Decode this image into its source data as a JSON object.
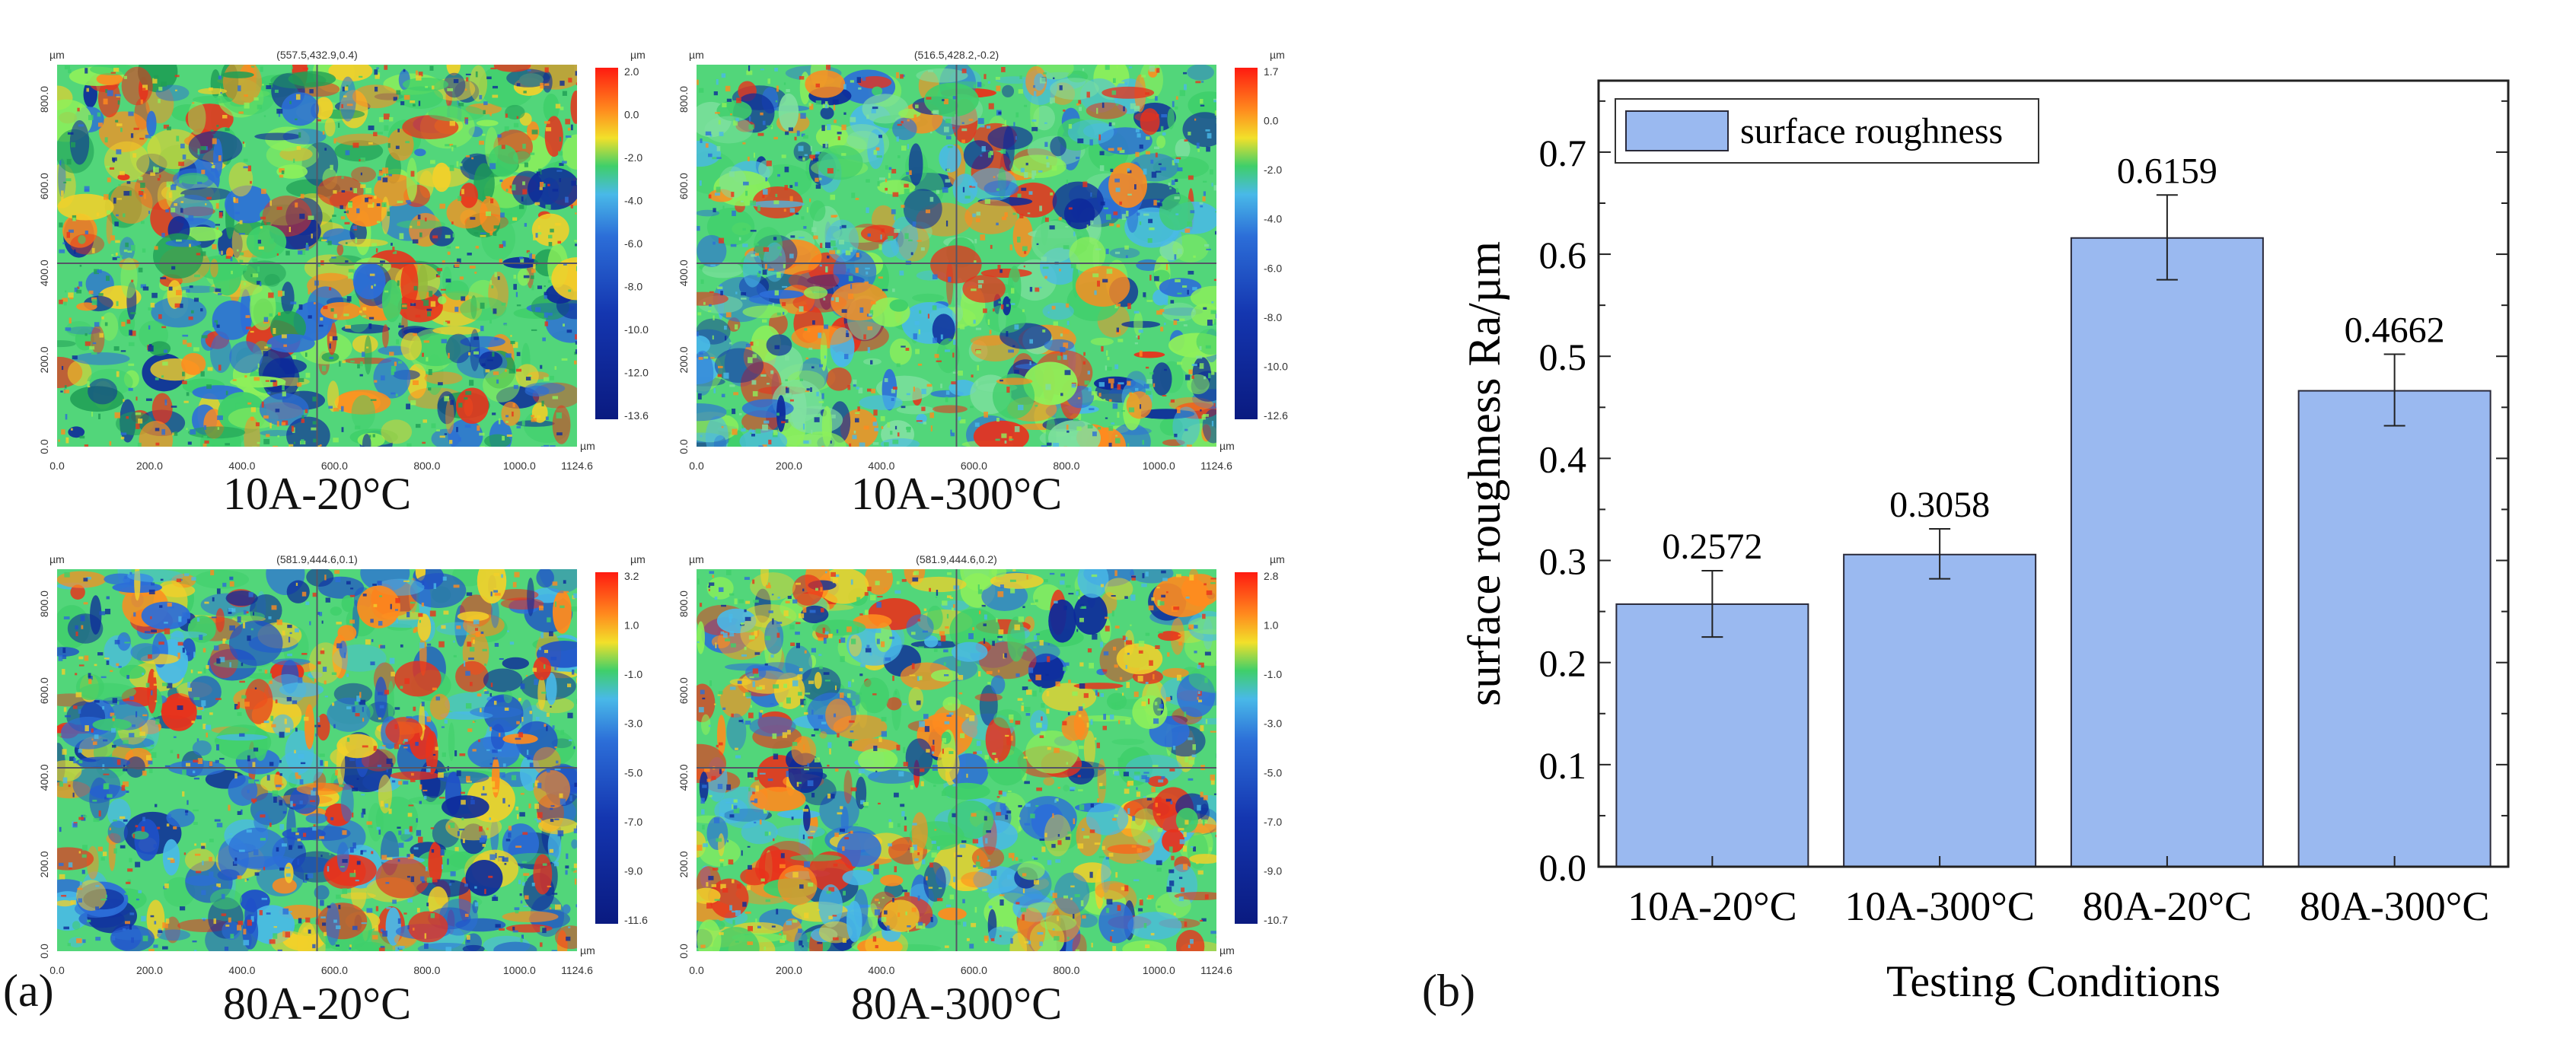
{
  "panel_a_label": "(a)",
  "panel_b_label": "(b)",
  "axis_unit": "µm",
  "x_ticks": [
    "0.0",
    "200.0",
    "400.0",
    "600.0",
    "800.0",
    "1000.0",
    "1124.6"
  ],
  "y_ticks": [
    "0.0",
    "200.0",
    "400.0",
    "600.0",
    "800.0"
  ],
  "maps": [
    {
      "caption": "10A-20°C",
      "cursor": "(557.5,432.9,0.4)",
      "colorbar": [
        "2.0",
        "0.0",
        "-2.0",
        "-4.0",
        "-6.0",
        "-8.0",
        "-10.0",
        "-12.0",
        "-13.6"
      ]
    },
    {
      "caption": "10A-300°C",
      "cursor": "(516.5,428.2,-0.2)",
      "colorbar": [
        "1.7",
        "0.0",
        "-2.0",
        "-4.0",
        "-6.0",
        "-8.0",
        "-10.0",
        "-12.6"
      ]
    },
    {
      "caption": "80A-20°C",
      "cursor": "(581.9,444.6,0.1)",
      "colorbar": [
        "3.2",
        "1.0",
        "-1.0",
        "-3.0",
        "-5.0",
        "-7.0",
        "-9.0",
        "-11.6"
      ]
    },
    {
      "caption": "80A-300°C",
      "cursor": "(581.9,444.6,0.2)",
      "colorbar": [
        "2.8",
        "1.0",
        "-1.0",
        "-3.0",
        "-5.0",
        "-7.0",
        "-9.0",
        "-10.7"
      ]
    }
  ],
  "chart_data": {
    "type": "bar",
    "categories": [
      "10A-20°C",
      "10A-300°C",
      "80A-20°C",
      "80A-300°C"
    ],
    "series": [
      {
        "name": "surface roughness",
        "values": [
          0.2572,
          0.3058,
          0.6159,
          0.4662
        ]
      }
    ],
    "value_labels": [
      "0.2572",
      "0.3058",
      "0.6159",
      "0.4662"
    ],
    "error_low": [
      0.225,
      0.282,
      0.575,
      0.432
    ],
    "error_high": [
      0.29,
      0.331,
      0.658,
      0.502
    ],
    "xlabel": "Testing Conditions",
    "ylabel": "surface roughness Ra/µm",
    "ylim": [
      0.0,
      0.77
    ],
    "yticks": [
      "0.0",
      "0.1",
      "0.2",
      "0.3",
      "0.4",
      "0.5",
      "0.6",
      "0.7"
    ],
    "legend": "top-left",
    "bar_color": "#9ab9f0"
  }
}
